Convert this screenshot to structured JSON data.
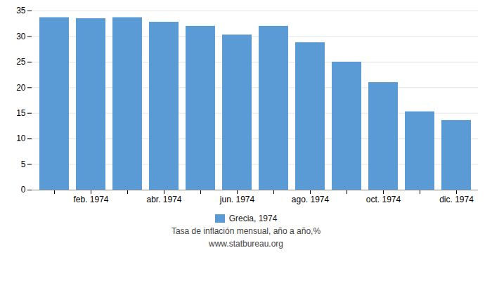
{
  "chart_data": {
    "type": "bar",
    "title": "Tasa de inflación mensual, año a año,%",
    "subtitle": "www.statbureau.org",
    "categories": [
      null,
      "feb. 1974",
      null,
      "abr. 1974",
      null,
      "jun. 1974",
      null,
      "ago. 1974",
      null,
      "oct. 1974",
      null,
      "dic. 1974"
    ],
    "series": [
      {
        "name": "Grecia, 1974",
        "color": "#5b9bd5",
        "values": [
          33.7,
          33.5,
          33.7,
          32.8,
          32.0,
          30.3,
          32.0,
          28.8,
          25.0,
          21.0,
          15.3,
          13.6
        ]
      }
    ],
    "ylim": [
      0,
      35
    ],
    "yticks": [
      0,
      5,
      10,
      15,
      20,
      25,
      30,
      35
    ],
    "grid": true,
    "legend": "bottom"
  }
}
